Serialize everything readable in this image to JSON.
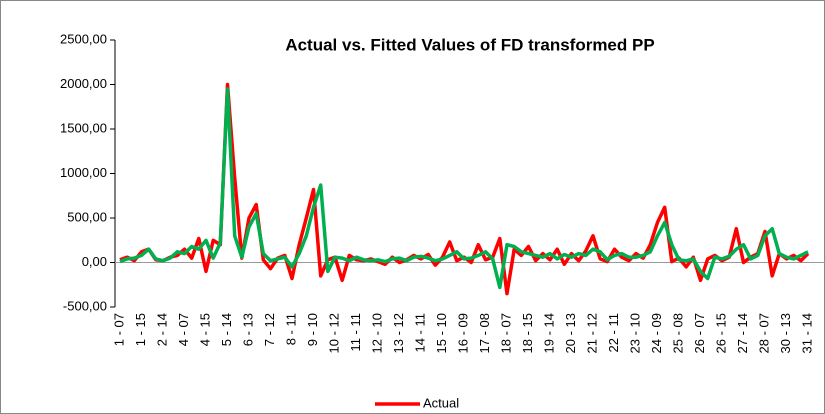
{
  "chart_data": {
    "type": "line",
    "title": "Actual vs. Fitted Values of FD transformed PP",
    "categories": [
      "1 - 07",
      null,
      null,
      "1 - 15",
      null,
      null,
      "2 - 14",
      null,
      null,
      "4 - 07",
      null,
      null,
      "4 - 15",
      null,
      null,
      "5 - 14",
      null,
      null,
      "6 - 13",
      null,
      null,
      "7 - 12",
      null,
      null,
      "8 - 11",
      null,
      null,
      "9 - 10",
      null,
      null,
      "10 - 12",
      null,
      null,
      "11 - 11",
      null,
      null,
      "12 - 10",
      null,
      null,
      "13 - 12",
      null,
      null,
      "14 - 11",
      null,
      null,
      "15 - 10",
      null,
      null,
      "16 - 09",
      null,
      null,
      "17 - 08",
      null,
      null,
      "18 - 07",
      null,
      null,
      "18 - 15",
      null,
      null,
      "19 - 14",
      null,
      null,
      "20 - 13",
      null,
      null,
      "21 - 12",
      null,
      null,
      "22 - 11",
      null,
      null,
      "23 - 10",
      null,
      null,
      "24 - 09",
      null,
      null,
      "25 - 08",
      null,
      null,
      "26 - 07",
      null,
      null,
      "26 - 15",
      null,
      null,
      "27 - 14",
      null,
      null,
      "28 - 07",
      null,
      null,
      "30 - 13",
      null,
      null,
      "31 - 14"
    ],
    "series": [
      {
        "name": "Actual",
        "color": "#ff0000",
        "values": [
          30,
          60,
          20,
          120,
          150,
          30,
          20,
          60,
          80,
          150,
          50,
          270,
          -100,
          250,
          200,
          2000,
          950,
          50,
          500,
          650,
          30,
          -70,
          50,
          80,
          -180,
          200,
          500,
          820,
          -150,
          30,
          60,
          -200,
          80,
          30,
          20,
          40,
          10,
          -20,
          60,
          0,
          30,
          80,
          40,
          90,
          -30,
          60,
          230,
          20,
          60,
          0,
          200,
          30,
          60,
          270,
          -350,
          150,
          80,
          180,
          20,
          100,
          30,
          150,
          -20,
          100,
          20,
          130,
          300,
          40,
          10,
          150,
          60,
          20,
          100,
          50,
          200,
          450,
          620,
          10,
          50,
          -50,
          60,
          -200,
          40,
          80,
          20,
          60,
          380,
          0,
          60,
          100,
          350,
          -150,
          100,
          40,
          80,
          20,
          100
        ]
      },
      {
        "color": "#00b050",
        "values": [
          10,
          40,
          50,
          80,
          150,
          40,
          20,
          50,
          120,
          100,
          180,
          150,
          250,
          50,
          220,
          1950,
          300,
          60,
          400,
          550,
          100,
          20,
          40,
          60,
          -50,
          100,
          300,
          620,
          870,
          -100,
          60,
          50,
          20,
          60,
          30,
          20,
          30,
          10,
          40,
          50,
          20,
          60,
          70,
          50,
          20,
          40,
          80,
          120,
          40,
          50,
          80,
          120,
          40,
          -280,
          200,
          180,
          120,
          100,
          80,
          60,
          100,
          40,
          90,
          60,
          100,
          80,
          150,
          120,
          30,
          80,
          100,
          60,
          60,
          80,
          120,
          300,
          450,
          200,
          30,
          20,
          40,
          -100,
          -180,
          60,
          40,
          70,
          150,
          200,
          40,
          80,
          300,
          380,
          100,
          60,
          40,
          80,
          120
        ]
      }
    ],
    "ylim": [
      -500,
      2500
    ],
    "yticks": [
      {
        "value": -500,
        "label": "-500,00"
      },
      {
        "value": 0,
        "label": "0,00"
      },
      {
        "value": 500,
        "label": "500,00"
      },
      {
        "value": 1000,
        "label": "1000,00"
      },
      {
        "value": 1500,
        "label": "1500,00"
      },
      {
        "value": 2000,
        "label": "2000,00"
      },
      {
        "value": 2500,
        "label": "2500,00"
      }
    ]
  }
}
